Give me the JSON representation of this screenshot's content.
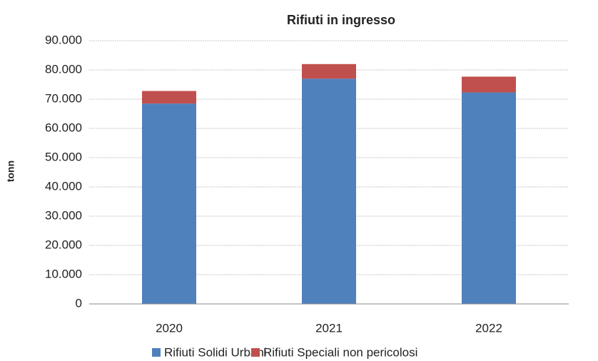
{
  "chart_data": {
    "type": "stacked_bar",
    "title": "Rifiuti in ingresso",
    "y_label": "tonn",
    "categories": [
      "2020",
      "2021",
      "2022"
    ],
    "series": [
      {
        "name": "Rifiuti Solidi Urbani",
        "color": "#4f81bd",
        "values": [
          68500,
          77000,
          72300
        ]
      },
      {
        "name": "Rifiuti Speciali non pericolosi",
        "color": "#c0504d",
        "values": [
          4300,
          5000,
          5400
        ]
      }
    ],
    "ylim": [
      0,
      90000
    ],
    "yticks": [
      0,
      {
        "value": 10000,
        "label": "10.000"
      },
      {
        "value": 20000,
        "label": "20.000"
      },
      {
        "value": 30000,
        "label": "30.000"
      },
      {
        "value": 40000,
        "label": "40.000"
      },
      {
        "value": 50000,
        "label": "50.000"
      },
      {
        "value": 60000,
        "label": "60.000"
      },
      {
        "value": 70000,
        "label": "70.000"
      },
      {
        "value": 80000,
        "label": "80.000"
      },
      {
        "value": 90000,
        "label": "90.000"
      }
    ],
    "grid": true,
    "legend": "bottom"
  }
}
